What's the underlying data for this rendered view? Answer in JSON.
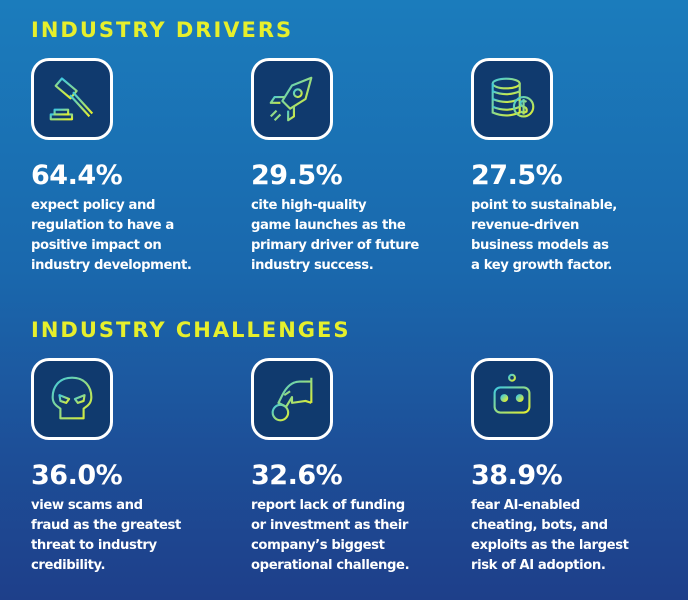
{
  "colors": {
    "title": "#e6ef2c",
    "background_top": "#1b7cbc",
    "background_bottom": "#1e3f8a",
    "icon_box": "#103a6e",
    "icon_gradient": [
      "#3ec8e0",
      "#e6ef2c"
    ]
  },
  "drivers": {
    "title": "INDUSTRY DRIVERS",
    "items": [
      {
        "icon": "gavel-icon",
        "percent": "64.4%",
        "text": "expect policy and\nregulation to have a\npositive impact on\nindustry development."
      },
      {
        "icon": "rocket-icon",
        "percent": "29.5%",
        "text": "cite high-quality\ngame launches as the\nprimary driver of future\nindustry success."
      },
      {
        "icon": "coins-dollar-icon",
        "percent": "27.5%",
        "text": "point to sustainable,\nrevenue-driven\nbusiness models as\na key growth factor."
      }
    ]
  },
  "challenges": {
    "title": "INDUSTRY CHALLENGES",
    "items": [
      {
        "icon": "skull-icon",
        "percent": "36.0%",
        "text": "view scams and\nfraud as the greatest\nthreat to industry\ncredibility."
      },
      {
        "icon": "hand-coin-icon",
        "percent": "32.6%",
        "text": "report lack of funding\nor investment as their\ncompany’s biggest\noperational challenge."
      },
      {
        "icon": "robot-icon",
        "percent": "38.9%",
        "text": "fear AI-enabled\ncheating, bots, and\nexploits as the largest\nrisk of AI adoption."
      }
    ]
  }
}
